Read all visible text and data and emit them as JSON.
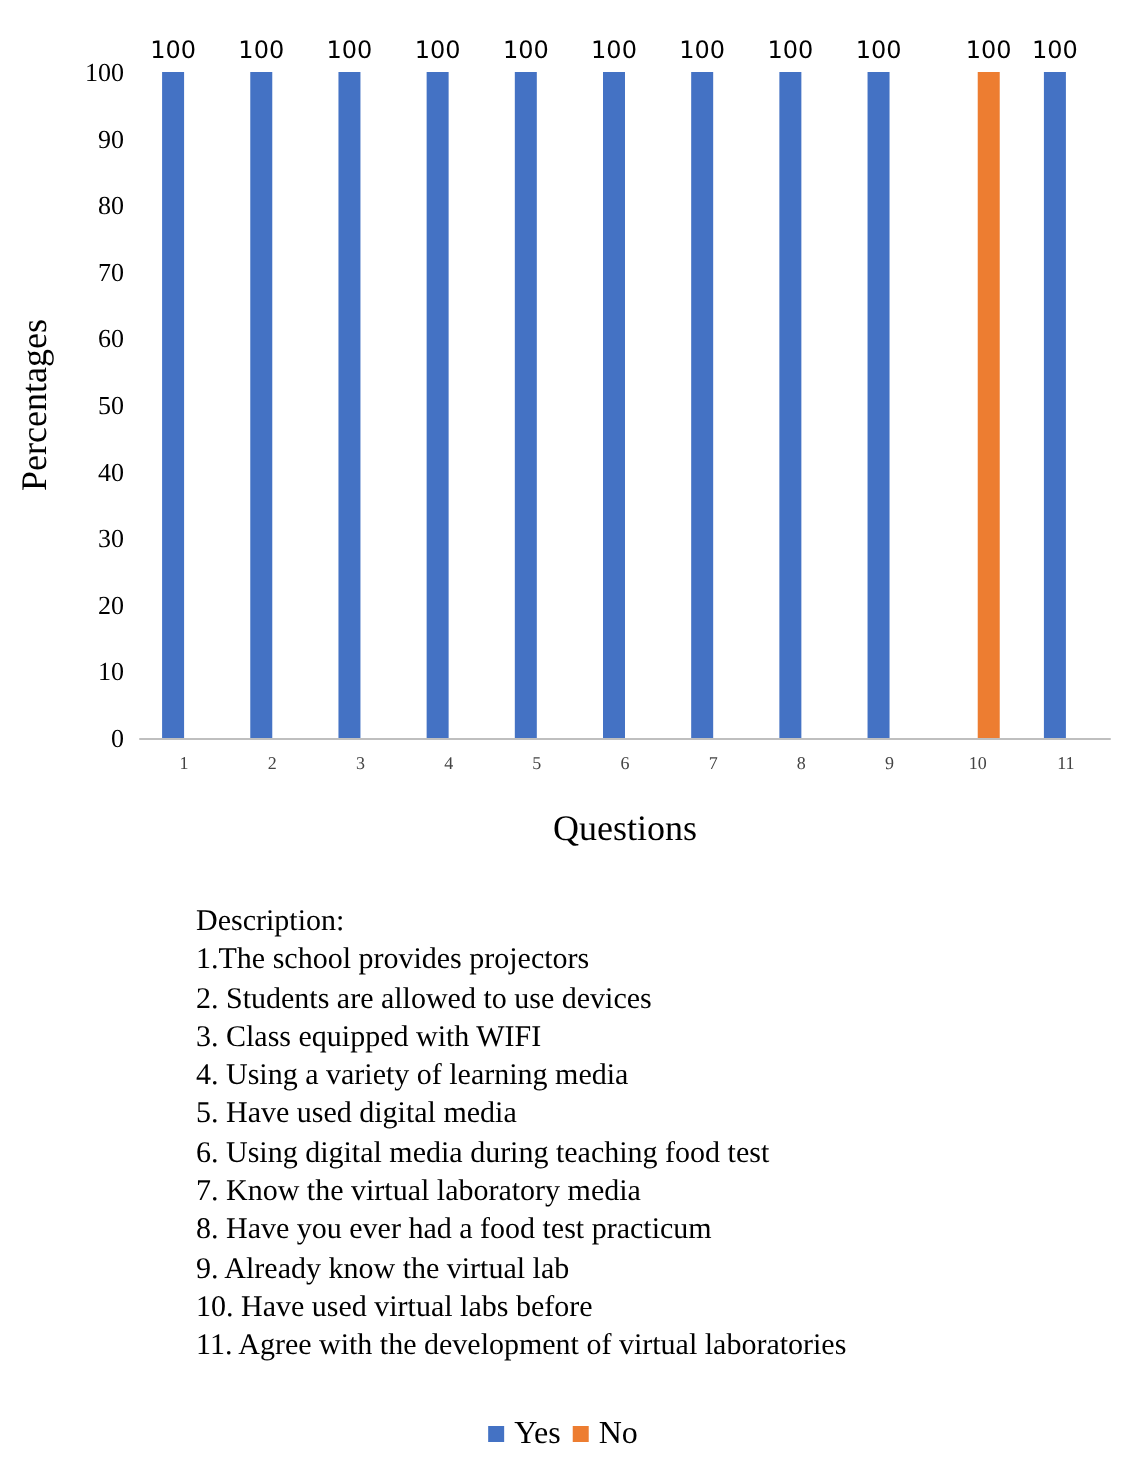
{
  "chart_data": {
    "type": "bar",
    "xlabel": "Questions",
    "ylabel": "Percentages",
    "categories": [
      "1",
      "2",
      "3",
      "4",
      "5",
      "6",
      "7",
      "8",
      "9",
      "10",
      "11"
    ],
    "series": [
      {
        "name": "Yes",
        "color": "#4472c4",
        "values": [
          100,
          100,
          100,
          100,
          100,
          100,
          100,
          100,
          100,
          null,
          100
        ]
      },
      {
        "name": "No",
        "color": "#ed7d31",
        "values": [
          null,
          null,
          null,
          null,
          null,
          null,
          null,
          null,
          null,
          100,
          null
        ]
      }
    ],
    "ylim": [
      0,
      100
    ],
    "yticks": [
      0,
      10,
      20,
      30,
      40,
      50,
      60,
      70,
      80,
      90,
      100
    ],
    "grid": false,
    "legend": "bottom",
    "data_labels": true,
    "annotations": [
      "Description:",
      "1.The school provides projectors",
      "2. Students are allowed to use devices",
      "3. Class equipped with WIFI",
      "4. Using a variety of learning media",
      "5. Have used digital media",
      "6. Using digital media during teaching food test",
      "7. Know the virtual laboratory media",
      "8. Have you ever had a food test practicum",
      "9. Already know the virtual lab",
      "10. Have used virtual labs before",
      "11. Agree with the development of virtual laboratories"
    ]
  }
}
